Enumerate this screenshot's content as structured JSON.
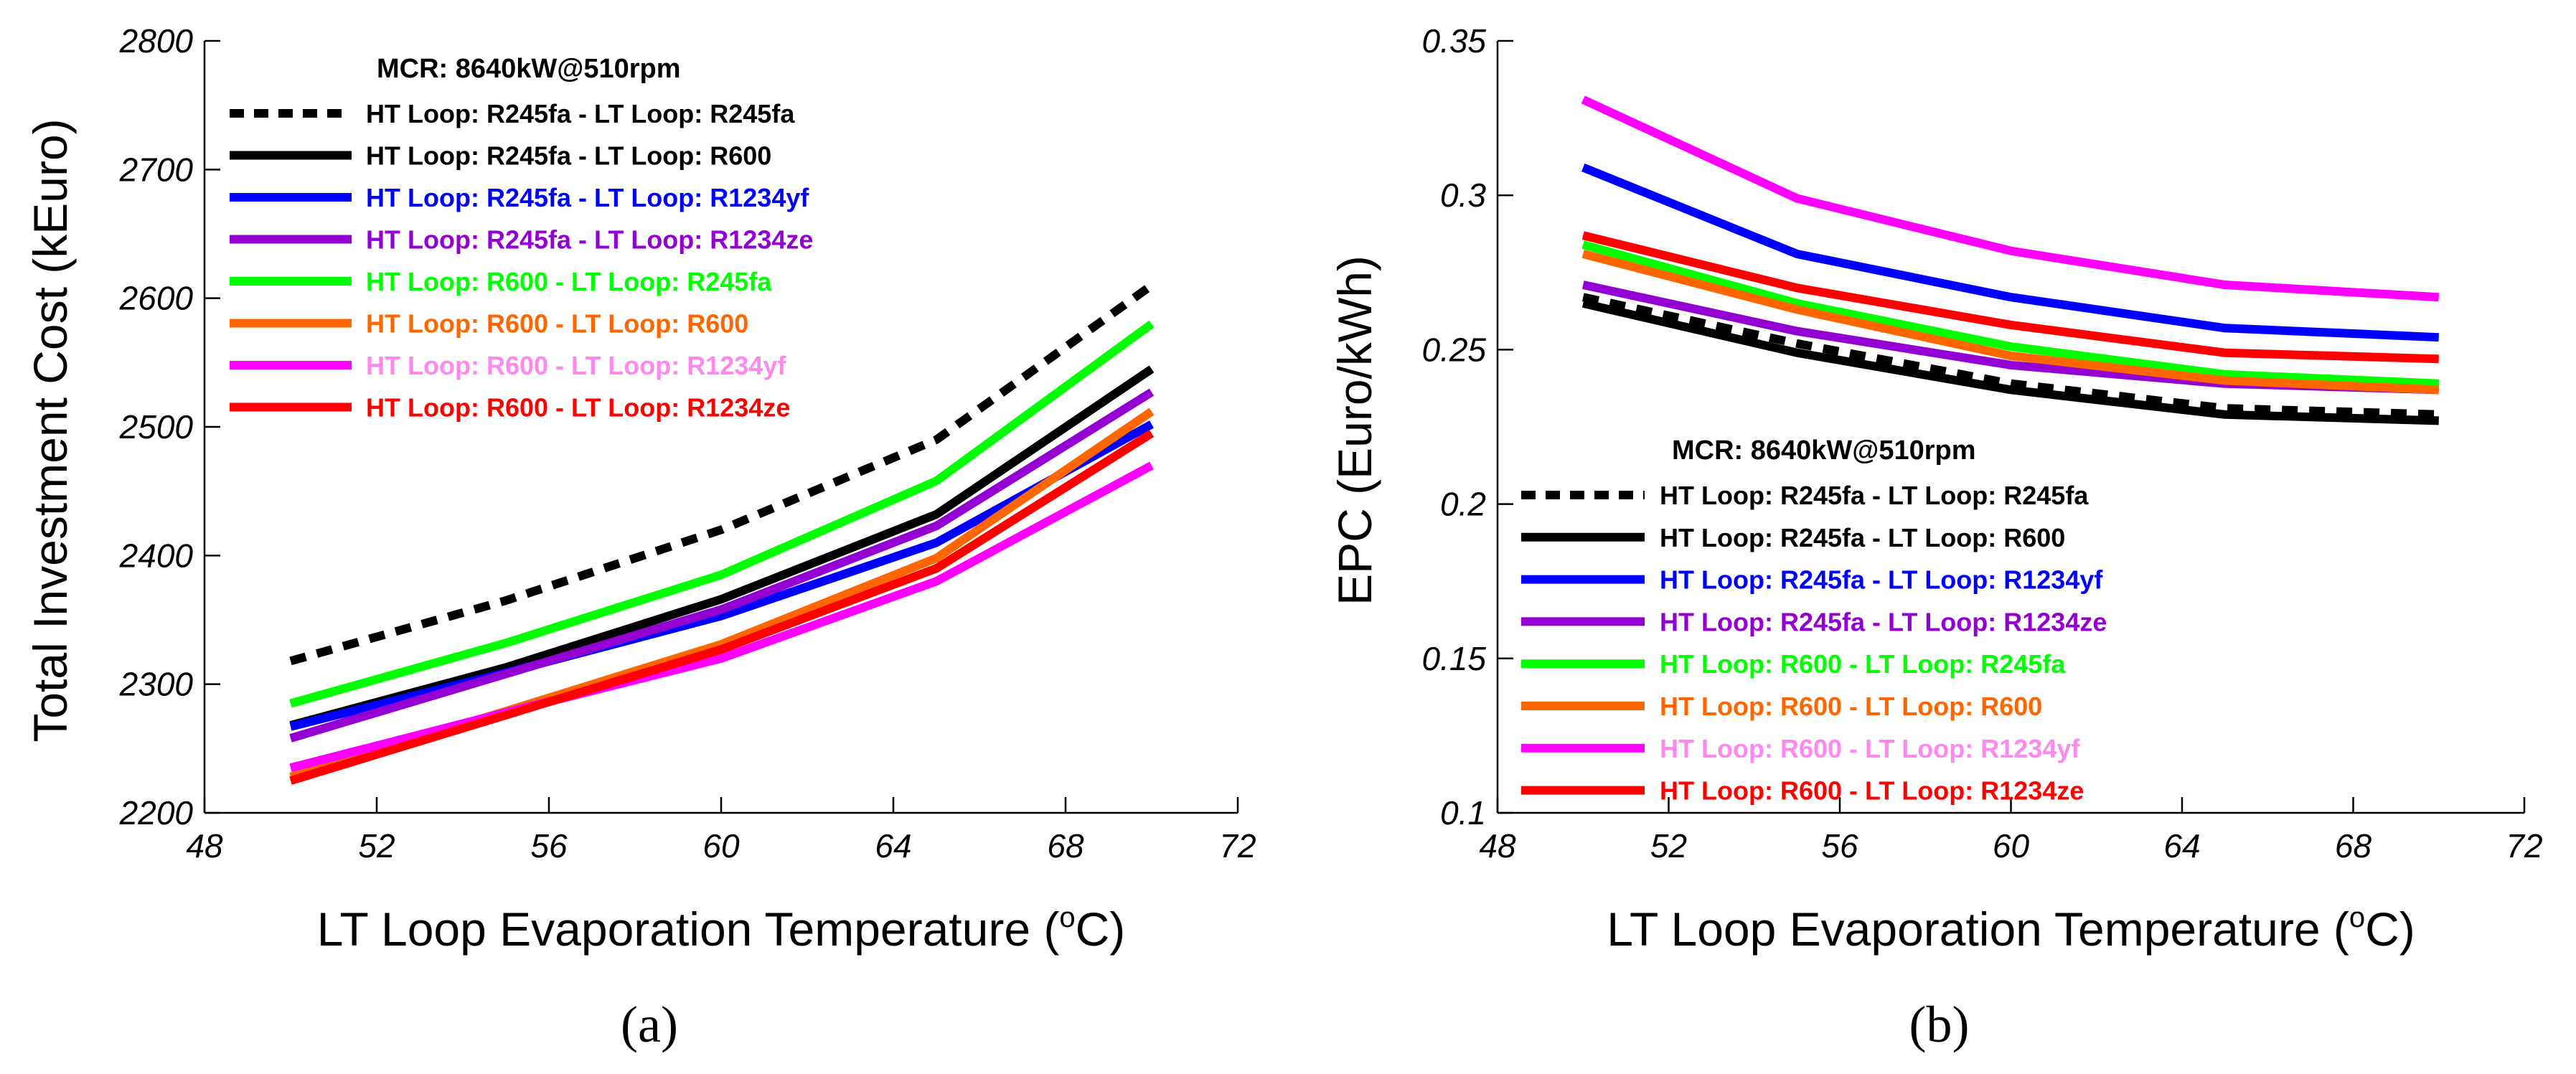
{
  "chart_data": [
    {
      "type": "line",
      "panel_label": "(a)",
      "title": "",
      "xlabel_main": "LT Loop Evaporation Temperature (",
      "xlabel_sup": "o",
      "xlabel_end": "C)",
      "ylabel": "Total Investment Cost (kEuro)",
      "xlim": [
        48,
        72
      ],
      "ylim": [
        2200,
        2800
      ],
      "xticks": [
        48,
        52,
        56,
        60,
        64,
        68,
        72
      ],
      "yticks": [
        2200,
        2300,
        2400,
        2500,
        2600,
        2700,
        2800
      ],
      "ytick_labels": [
        "2200",
        "2300",
        "2400",
        "2500",
        "2600",
        "2700",
        "2800"
      ],
      "legend_title": "MCR: 8640kW@510rpm",
      "legend_position": "top-left",
      "x": [
        50,
        55,
        60,
        65,
        70
      ],
      "series": [
        {
          "name": "HT Loop: R245fa - LT Loop: R245fa",
          "color": "#000000",
          "dashed": true,
          "values": [
            2318,
            2365,
            2420,
            2490,
            2610
          ]
        },
        {
          "name": "HT Loop: R245fa - LT Loop: R600",
          "color": "#000000",
          "dashed": false,
          "values": [
            2268,
            2313,
            2366,
            2432,
            2545
          ]
        },
        {
          "name": "HT Loop: R245fa - LT Loop: R1234yf",
          "color": "#0000ff",
          "dashed": false,
          "values": [
            2267,
            2309,
            2353,
            2410,
            2502
          ]
        },
        {
          "name": "HT Loop: R245fa - LT Loop: R1234ze",
          "color": "#9400d3",
          "dashed": false,
          "values": [
            2258,
            2308,
            2358,
            2423,
            2527
          ]
        },
        {
          "name": "HT Loop: R600 - LT Loop: R245fa",
          "color": "#00ff00",
          "dashed": false,
          "values": [
            2285,
            2332,
            2385,
            2458,
            2580
          ]
        },
        {
          "name": "HT Loop: R600 - LT Loop: R600",
          "color": "#ff6600",
          "dashed": false,
          "values": [
            2228,
            2279,
            2331,
            2398,
            2512
          ]
        },
        {
          "name": "HT Loop: R600 - LT Loop: R1234yf",
          "color": "#ff00ff",
          "text_color": "#ff88ee",
          "dashed": false,
          "values": [
            2235,
            2278,
            2320,
            2380,
            2470
          ]
        },
        {
          "name": "HT Loop: R600 - LT Loop: R1234ze",
          "color": "#ff0000",
          "dashed": false,
          "values": [
            2225,
            2276,
            2327,
            2390,
            2495
          ]
        }
      ]
    },
    {
      "type": "line",
      "panel_label": "(b)",
      "title": "",
      "xlabel_main": "LT Loop Evaporation Temperature (",
      "xlabel_sup": "o",
      "xlabel_end": "C)",
      "ylabel": "EPC (Euro/kWh)",
      "xlim": [
        48,
        72
      ],
      "ylim": [
        0.1,
        0.35
      ],
      "xticks": [
        48,
        52,
        56,
        60,
        64,
        68,
        72
      ],
      "yticks": [
        0.1,
        0.15,
        0.2,
        0.25,
        0.3,
        0.35
      ],
      "ytick_labels": [
        "0.1",
        "0.15",
        "0.2",
        "0.25",
        "0.3",
        "0.35"
      ],
      "legend_title": "MCR: 8640kW@510rpm",
      "legend_position": "bottom-center",
      "x": [
        50,
        55,
        60,
        65,
        70
      ],
      "series": [
        {
          "name": "HT Loop: R245fa - LT Loop: R245fa",
          "color": "#000000",
          "dashed": true,
          "values": [
            0.267,
            0.252,
            0.239,
            0.231,
            0.229
          ]
        },
        {
          "name": "HT Loop: R245fa - LT Loop: R600",
          "color": "#000000",
          "dashed": false,
          "values": [
            0.265,
            0.249,
            0.237,
            0.229,
            0.227
          ]
        },
        {
          "name": "HT Loop: R245fa - LT Loop: R1234yf",
          "color": "#0000ff",
          "dashed": false,
          "values": [
            0.309,
            0.281,
            0.267,
            0.257,
            0.254
          ]
        },
        {
          "name": "HT Loop: R245fa - LT Loop: R1234ze",
          "color": "#9400d3",
          "dashed": false,
          "values": [
            0.271,
            0.256,
            0.245,
            0.239,
            0.237
          ]
        },
        {
          "name": "HT Loop: R600 - LT Loop: R245fa",
          "color": "#00ff00",
          "dashed": false,
          "values": [
            0.284,
            0.265,
            0.251,
            0.242,
            0.239
          ]
        },
        {
          "name": "HT Loop: R600 - LT Loop: R600",
          "color": "#ff6600",
          "dashed": false,
          "values": [
            0.281,
            0.263,
            0.248,
            0.24,
            0.237
          ]
        },
        {
          "name": "HT Loop: R600 - LT Loop: R1234yf",
          "color": "#ff00ff",
          "text_color": "#ff88ee",
          "dashed": false,
          "values": [
            0.331,
            0.299,
            0.282,
            0.271,
            0.267
          ]
        },
        {
          "name": "HT Loop: R600 - LT Loop: R1234ze",
          "color": "#ff0000",
          "dashed": false,
          "values": [
            0.287,
            0.27,
            0.258,
            0.249,
            0.247
          ]
        }
      ]
    }
  ]
}
